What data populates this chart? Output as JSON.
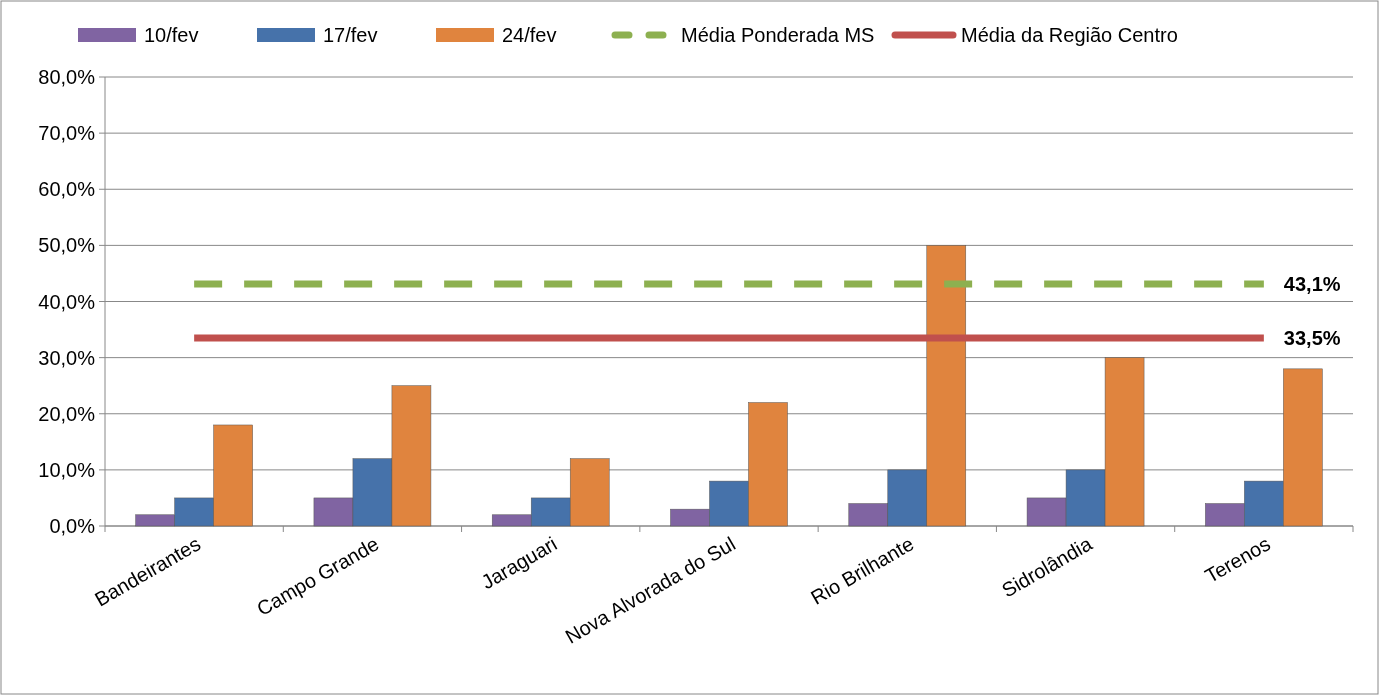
{
  "chart_data": {
    "type": "bar",
    "categories": [
      "Bandeirantes",
      "Campo Grande",
      "Jaraguari",
      "Nova Alvorada do Sul",
      "Rio Brilhante",
      "Sidrolândia",
      "Terenos"
    ],
    "series": [
      {
        "name": "10/fev",
        "color": "#8064a2",
        "values": [
          2,
          5,
          2,
          3,
          4,
          5,
          4
        ]
      },
      {
        "name": "17/fev",
        "color": "#4672aa",
        "values": [
          5,
          12,
          5,
          8,
          10,
          10,
          8
        ]
      },
      {
        "name": "24/fev",
        "color": "#e0843e",
        "values": [
          18,
          25,
          12,
          22,
          50,
          30,
          28
        ]
      },
      {
        "name": "Média Ponderada MS",
        "type": "line",
        "color": "#8db050",
        "line_style": "dashed",
        "values": [
          43.1,
          43.1,
          43.1,
          43.1,
          43.1,
          43.1,
          43.1
        ],
        "value_labels": [
          null,
          null,
          null,
          null,
          null,
          null,
          "43,1%"
        ]
      },
      {
        "name": "Média da Região Centro",
        "type": "line",
        "color": "#c0504d",
        "line_style": "solid",
        "values": [
          33.5,
          33.5,
          33.5,
          33.5,
          33.5,
          33.5,
          33.5
        ],
        "value_labels": [
          null,
          null,
          null,
          null,
          null,
          null,
          "33,5%"
        ]
      }
    ],
    "ylim": [
      0,
      80
    ],
    "yticks": [
      {
        "value": 0,
        "label": "0,0%"
      },
      {
        "value": 10,
        "label": "10,0%"
      },
      {
        "value": 20,
        "label": "20,0%"
      },
      {
        "value": 30,
        "label": "30,0%"
      },
      {
        "value": 40,
        "label": "40,0%"
      },
      {
        "value": 50,
        "label": "50,0%"
      },
      {
        "value": 60,
        "label": "60,0%"
      },
      {
        "value": 70,
        "label": "70,0%"
      },
      {
        "value": 80,
        "label": "80,0%"
      }
    ],
    "grid": "y",
    "legend": "top"
  }
}
